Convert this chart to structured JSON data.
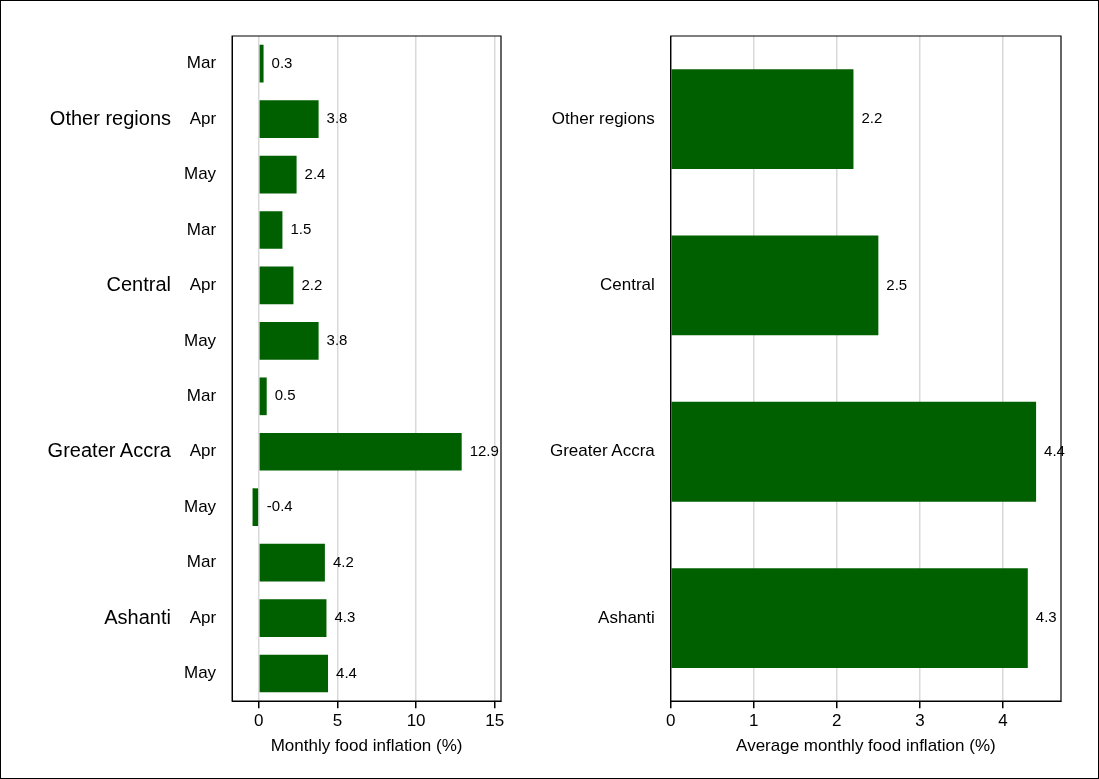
{
  "chart_data": [
    {
      "type": "bar",
      "orientation": "horizontal",
      "categories": [
        "Mar",
        "Apr",
        "May",
        "Mar",
        "Apr",
        "May",
        "Mar",
        "Apr",
        "May",
        "Mar",
        "Apr",
        "May"
      ],
      "values": [
        0.3,
        3.8,
        2.4,
        1.5,
        2.2,
        3.8,
        0.5,
        12.9,
        -0.4,
        4.2,
        4.3,
        4.4
      ],
      "color": "#006000",
      "xlim": [
        -1.7,
        15.4
      ],
      "xticks": [
        0,
        5,
        10,
        15
      ],
      "xlabel": "Monthly food inflation (%)",
      "grid": "x",
      "data_labels": true,
      "annotations": [
        "Other regions",
        "Central",
        "Greater Accra",
        "Ashanti"
      ]
    },
    {
      "type": "bar",
      "orientation": "horizontal",
      "categories": [
        "Other regions",
        "Central",
        "Greater Accra",
        "Ashanti"
      ],
      "values": [
        2.2,
        2.5,
        4.4,
        4.3
      ],
      "color": "#006000",
      "xlim": [
        0,
        4.7
      ],
      "xticks": [
        0,
        1,
        2,
        3,
        4
      ],
      "xlabel": "Average monthly food inflation (%)",
      "grid": "x",
      "data_labels": true
    }
  ]
}
